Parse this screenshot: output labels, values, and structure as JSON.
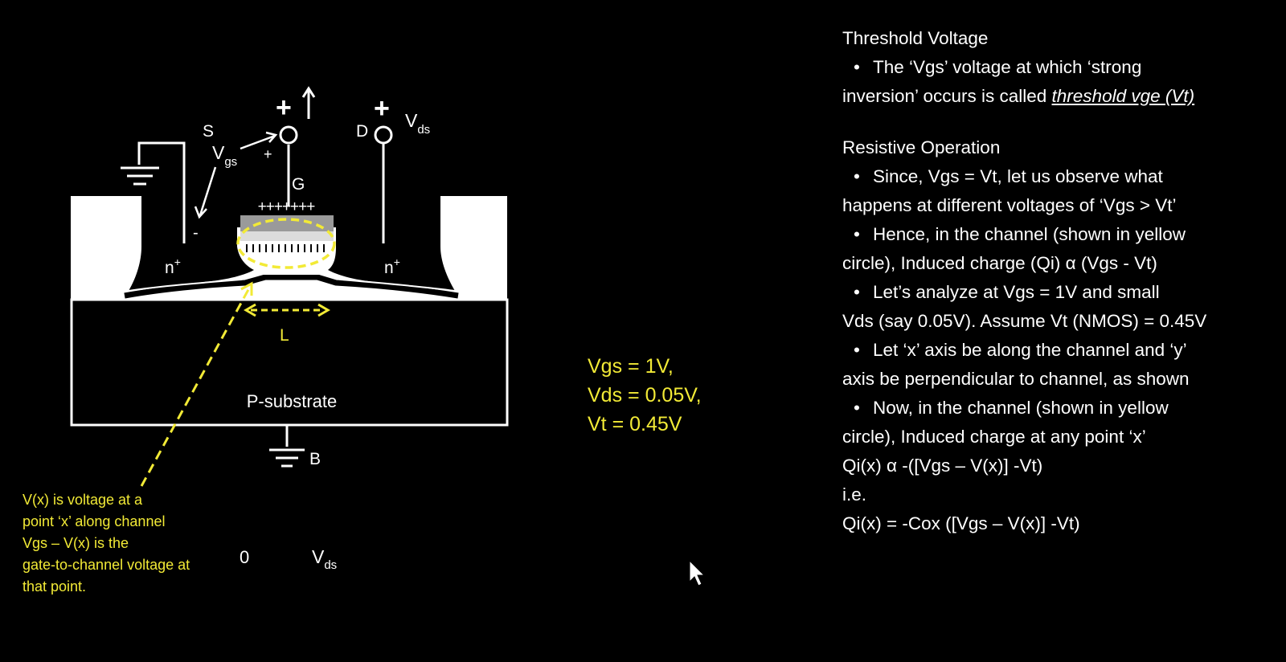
{
  "diagram": {
    "source_label": "S",
    "drain_label": "D",
    "gate_label": "G",
    "body_label": "B",
    "vgs_main": "V",
    "vgs_sub": "gs",
    "vds_main": "V",
    "vds_sub": "ds",
    "gate_plus": "+",
    "drain_plus": "+",
    "vgs_plus": "+",
    "vgs_minus": "-",
    "gate_charges": "+++++++",
    "n_left_main": "n",
    "n_left_sup": "+",
    "n_right_main": "n",
    "n_right_sup": "+",
    "length_label": "L",
    "substrate_label": "P-substrate",
    "axis_zero": "0",
    "axis_vds_main": "V",
    "axis_vds_sub": "ds"
  },
  "params": [
    "Vgs = 1V,",
    "Vds = 0.05V,",
    "Vt = 0.45V"
  ],
  "note_lines": [
    "V(x) is voltage at a",
    "point ‘x’ along channel",
    "Vgs – V(x) is the",
    "gate-to-channel voltage at",
    "that point."
  ],
  "notes": {
    "threshold_heading": "Threshold Voltage",
    "threshold_bullet_pre": "The ‘Vgs’ voltage at which ‘strong",
    "threshold_bullet_line2": "inversion’ occurs is called ",
    "threshold_bullet_emph": "threshold vge (Vt)",
    "resistive_heading": "Resistive Operation",
    "b1_l1": "Since, Vgs = Vt, let us observe what",
    "b1_l2": "happens at different voltages of ‘Vgs > Vt’",
    "b2_l1": "Hence, in the channel (shown in yellow",
    "b2_l2": "circle), Induced charge (Qi) α  (Vgs - Vt)",
    "b3_l1": "Let’s analyze at Vgs = 1V and small",
    "b3_l2": "Vds (say 0.05V). Assume Vt (NMOS) = 0.45V",
    "b4_l1": "Let ‘x’ axis be along the channel and ‘y’",
    "b4_l2": "axis be perpendicular to channel, as shown",
    "b5_l1": "Now, in the channel (shown in yellow",
    "b5_l2": "circle), Induced charge at any point ‘x’",
    "eq1": "Qi(x) α -([Vgs – V(x)] -Vt)",
    "ie": "i.e.",
    "eq2": "Qi(x) = -Cox ([Vgs – V(x)] -Vt)",
    "bullet": "•"
  },
  "colors": {
    "background": "#000000",
    "foreground": "#ffffff",
    "accent_yellow": "#f2ea36"
  }
}
